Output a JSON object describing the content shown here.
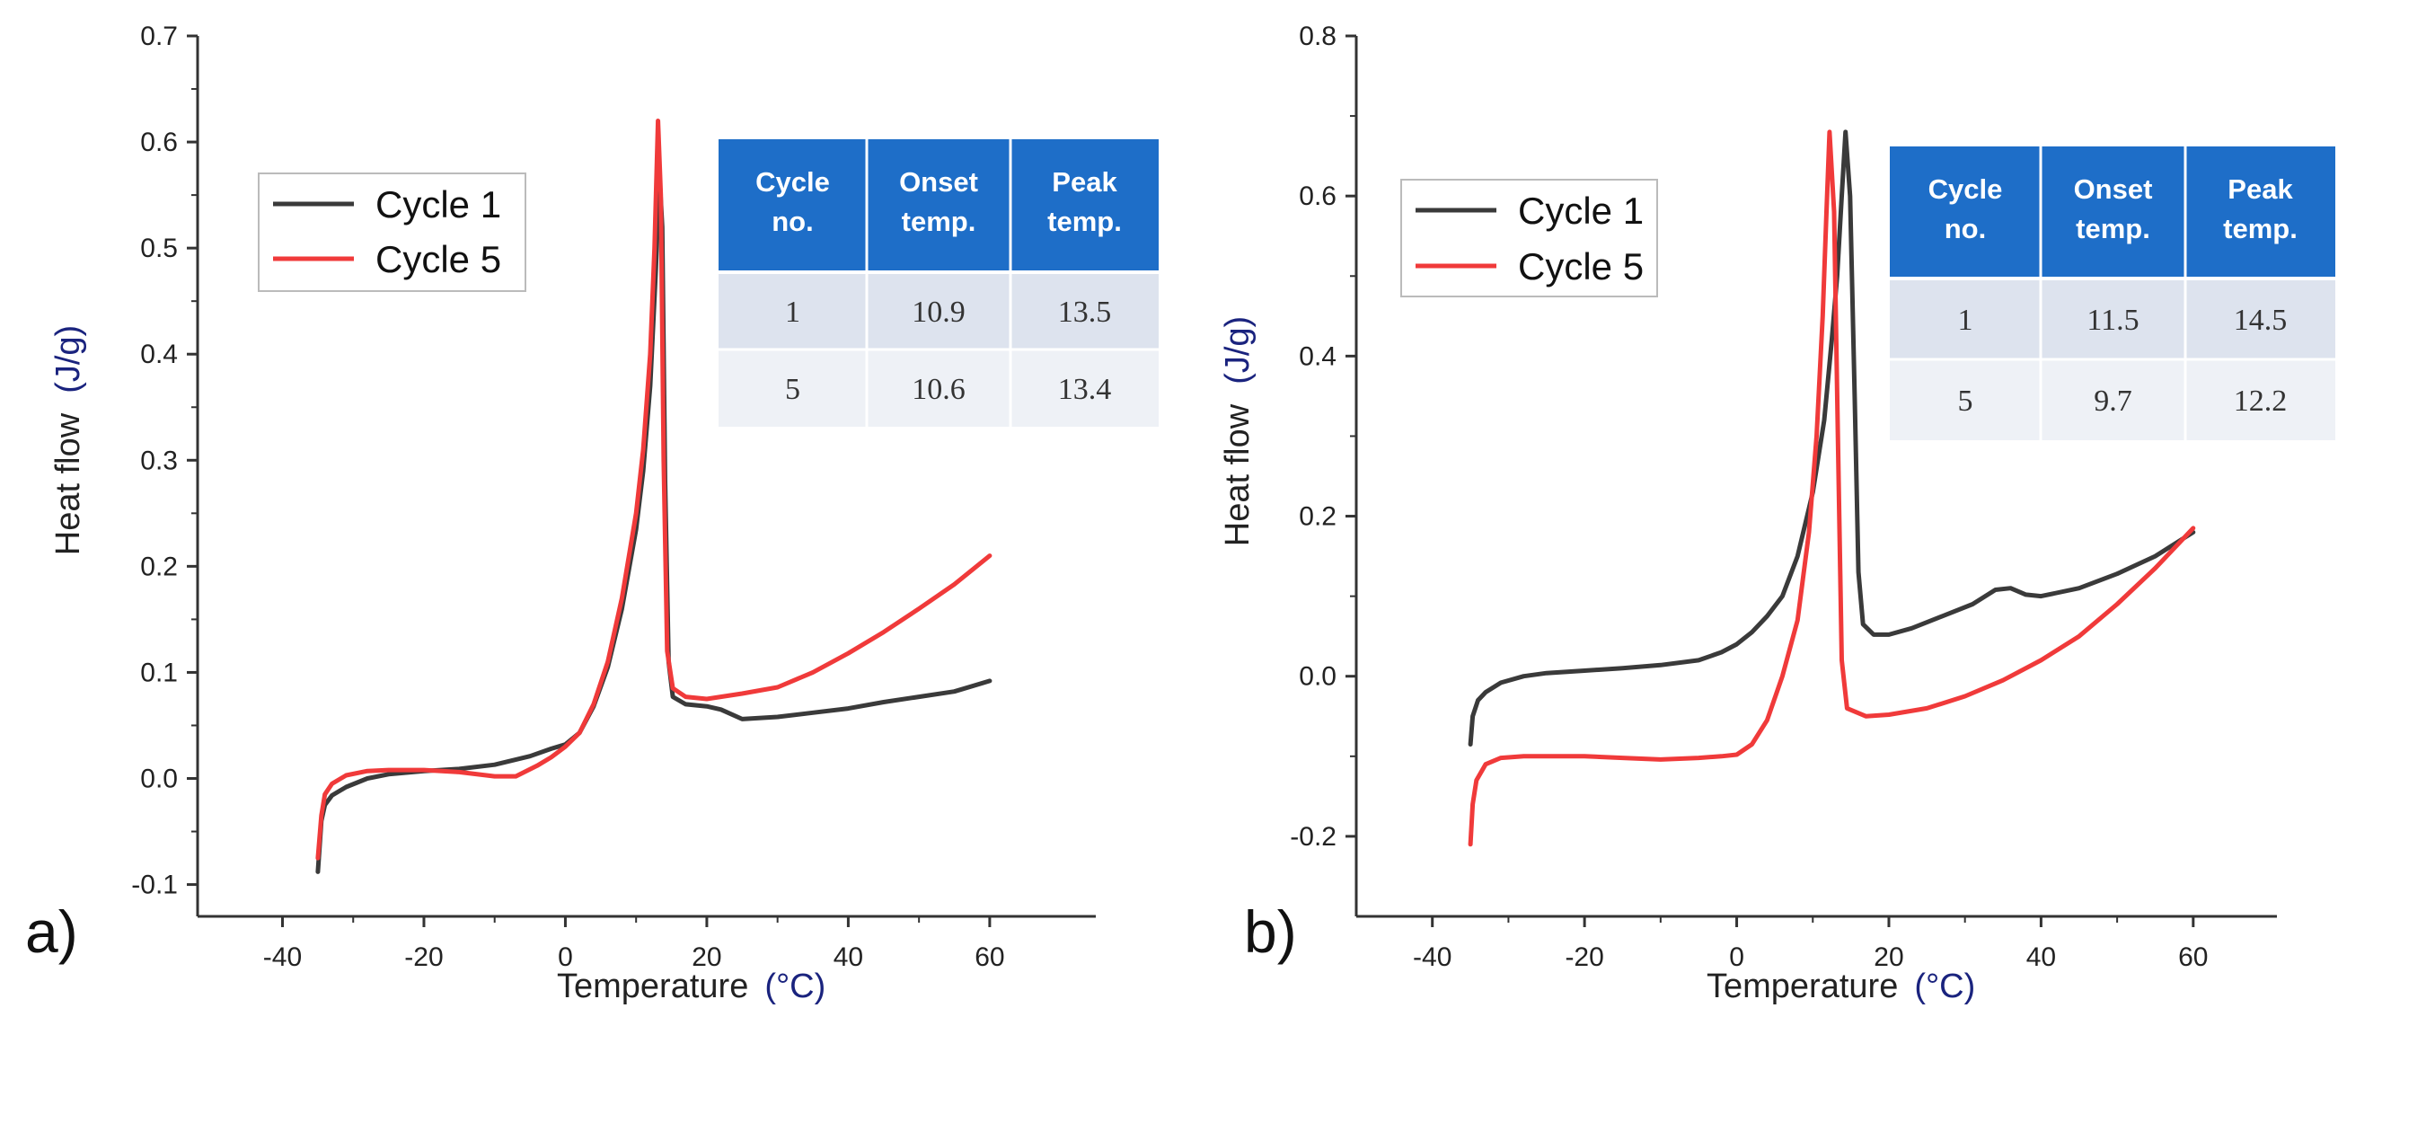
{
  "colors": {
    "cycle1": "#3a3a3a",
    "cycle5": "#f03a3a",
    "table_header": "#1e6ec8",
    "table_row_a": "#dde3ee",
    "table_row_b": "#eef1f6",
    "axis": "#333333",
    "unit": "#1a237e"
  },
  "chart_data": [
    {
      "panel": "a)",
      "type": "line",
      "xlabel": "Temperature",
      "xunit": "(°C)",
      "ylabel": "Heat flow",
      "yunit": "(J/g)",
      "xlim": [
        -52,
        75
      ],
      "ylim": [
        -0.13,
        0.7
      ],
      "xticks": [
        "-40",
        "-20",
        "0",
        "20",
        "40",
        "60"
      ],
      "yticks": [
        "-0.1",
        "0.0",
        "0.1",
        "0.2",
        "0.3",
        "0.4",
        "0.5",
        "0.6",
        "0.7"
      ],
      "legend": [
        "Cycle 1",
        "Cycle 5"
      ],
      "series": [
        {
          "name": "Cycle 1",
          "points": [
            [
              -35,
              -0.088
            ],
            [
              -34.5,
              -0.04
            ],
            [
              -34,
              -0.025
            ],
            [
              -33,
              -0.016
            ],
            [
              -31,
              -0.008
            ],
            [
              -28,
              0.0
            ],
            [
              -25,
              0.004
            ],
            [
              -20,
              0.007
            ],
            [
              -15,
              0.009
            ],
            [
              -10,
              0.013
            ],
            [
              -5,
              0.021
            ],
            [
              -2,
              0.028
            ],
            [
              0,
              0.032
            ],
            [
              2,
              0.043
            ],
            [
              4,
              0.068
            ],
            [
              6,
              0.105
            ],
            [
              8,
              0.16
            ],
            [
              10,
              0.235
            ],
            [
              11,
              0.29
            ],
            [
              12,
              0.37
            ],
            [
              12.8,
              0.48
            ],
            [
              13.3,
              0.57
            ],
            [
              13.7,
              0.52
            ],
            [
              14.1,
              0.28
            ],
            [
              14.6,
              0.11
            ],
            [
              15.2,
              0.077
            ],
            [
              17,
              0.07
            ],
            [
              20,
              0.068
            ],
            [
              22,
              0.065
            ],
            [
              25,
              0.056
            ],
            [
              30,
              0.058
            ],
            [
              35,
              0.062
            ],
            [
              40,
              0.066
            ],
            [
              45,
              0.072
            ],
            [
              50,
              0.077
            ],
            [
              55,
              0.082
            ],
            [
              60,
              0.092
            ]
          ]
        },
        {
          "name": "Cycle 5",
          "points": [
            [
              -35,
              -0.075
            ],
            [
              -34.5,
              -0.035
            ],
            [
              -34,
              -0.015
            ],
            [
              -33,
              -0.005
            ],
            [
              -31,
              0.003
            ],
            [
              -28,
              0.007
            ],
            [
              -25,
              0.008
            ],
            [
              -20,
              0.008
            ],
            [
              -15,
              0.006
            ],
            [
              -10,
              0.002
            ],
            [
              -7,
              0.002
            ],
            [
              -4,
              0.012
            ],
            [
              -2,
              0.02
            ],
            [
              0,
              0.03
            ],
            [
              2,
              0.043
            ],
            [
              4,
              0.07
            ],
            [
              6,
              0.11
            ],
            [
              8,
              0.17
            ],
            [
              10,
              0.25
            ],
            [
              11,
              0.31
            ],
            [
              12,
              0.4
            ],
            [
              12.6,
              0.5
            ],
            [
              13.1,
              0.62
            ],
            [
              13.5,
              0.55
            ],
            [
              13.9,
              0.3
            ],
            [
              14.4,
              0.12
            ],
            [
              15.2,
              0.085
            ],
            [
              17,
              0.077
            ],
            [
              20,
              0.075
            ],
            [
              25,
              0.08
            ],
            [
              30,
              0.086
            ],
            [
              35,
              0.1
            ],
            [
              40,
              0.118
            ],
            [
              45,
              0.138
            ],
            [
              50,
              0.16
            ],
            [
              55,
              0.183
            ],
            [
              60,
              0.21
            ]
          ]
        }
      ],
      "table": {
        "headers": [
          [
            "Cycle",
            "no."
          ],
          [
            "Onset",
            "temp."
          ],
          [
            "Peak",
            "temp."
          ]
        ],
        "rows": [
          [
            "1",
            "10.9",
            "13.5"
          ],
          [
            "5",
            "10.6",
            "13.4"
          ]
        ]
      }
    },
    {
      "panel": "b)",
      "type": "line",
      "xlabel": "Temperature",
      "xunit": "(°C)",
      "ylabel": "Heat flow",
      "yunit": "(J/g)",
      "xlim": [
        -50,
        71
      ],
      "ylim": [
        -0.3,
        0.8
      ],
      "xticks": [
        "-40",
        "-20",
        "0",
        "20",
        "40",
        "60"
      ],
      "yticks": [
        "-0.2",
        "0.0",
        "0.2",
        "0.4",
        "0.6",
        "0.8"
      ],
      "legend": [
        "Cycle 1",
        "Cycle 5"
      ],
      "series": [
        {
          "name": "Cycle 1",
          "points": [
            [
              -35,
              -0.085
            ],
            [
              -34.7,
              -0.05
            ],
            [
              -34,
              -0.03
            ],
            [
              -33,
              -0.02
            ],
            [
              -31,
              -0.008
            ],
            [
              -28,
              0.0
            ],
            [
              -25,
              0.004
            ],
            [
              -20,
              0.007
            ],
            [
              -15,
              0.01
            ],
            [
              -10,
              0.014
            ],
            [
              -5,
              0.02
            ],
            [
              -2,
              0.03
            ],
            [
              0,
              0.04
            ],
            [
              2,
              0.055
            ],
            [
              4,
              0.075
            ],
            [
              6,
              0.1
            ],
            [
              8,
              0.15
            ],
            [
              10,
              0.23
            ],
            [
              11.5,
              0.32
            ],
            [
              12.5,
              0.42
            ],
            [
              13.2,
              0.5
            ],
            [
              13.8,
              0.6
            ],
            [
              14.3,
              0.68
            ],
            [
              14.9,
              0.6
            ],
            [
              15.5,
              0.35
            ],
            [
              16,
              0.13
            ],
            [
              16.6,
              0.065
            ],
            [
              18,
              0.052
            ],
            [
              20,
              0.052
            ],
            [
              23,
              0.06
            ],
            [
              27,
              0.075
            ],
            [
              31,
              0.09
            ],
            [
              34,
              0.108
            ],
            [
              36,
              0.11
            ],
            [
              38,
              0.102
            ],
            [
              40,
              0.1
            ],
            [
              45,
              0.11
            ],
            [
              50,
              0.128
            ],
            [
              55,
              0.15
            ],
            [
              60,
              0.18
            ]
          ]
        },
        {
          "name": "Cycle 5",
          "points": [
            [
              -35,
              -0.21
            ],
            [
              -34.7,
              -0.16
            ],
            [
              -34.2,
              -0.13
            ],
            [
              -33,
              -0.11
            ],
            [
              -31,
              -0.102
            ],
            [
              -28,
              -0.1
            ],
            [
              -25,
              -0.1
            ],
            [
              -20,
              -0.1
            ],
            [
              -15,
              -0.102
            ],
            [
              -10,
              -0.104
            ],
            [
              -5,
              -0.102
            ],
            [
              -2,
              -0.1
            ],
            [
              0,
              -0.098
            ],
            [
              2,
              -0.085
            ],
            [
              4,
              -0.055
            ],
            [
              6,
              0.0
            ],
            [
              8,
              0.07
            ],
            [
              9.5,
              0.18
            ],
            [
              10.5,
              0.3
            ],
            [
              11.3,
              0.45
            ],
            [
              11.8,
              0.58
            ],
            [
              12.2,
              0.68
            ],
            [
              12.8,
              0.58
            ],
            [
              13.3,
              0.3
            ],
            [
              13.8,
              0.02
            ],
            [
              14.5,
              -0.04
            ],
            [
              17,
              -0.05
            ],
            [
              20,
              -0.048
            ],
            [
              25,
              -0.04
            ],
            [
              30,
              -0.025
            ],
            [
              35,
              -0.005
            ],
            [
              40,
              0.02
            ],
            [
              45,
              0.05
            ],
            [
              50,
              0.09
            ],
            [
              55,
              0.135
            ],
            [
              60,
              0.185
            ]
          ]
        }
      ],
      "table": {
        "headers": [
          [
            "Cycle",
            "no."
          ],
          [
            "Onset",
            "temp."
          ],
          [
            "Peak",
            "temp."
          ]
        ],
        "rows": [
          [
            "1",
            "11.5",
            "14.5"
          ],
          [
            "5",
            "9.7",
            "12.2"
          ]
        ]
      }
    }
  ]
}
